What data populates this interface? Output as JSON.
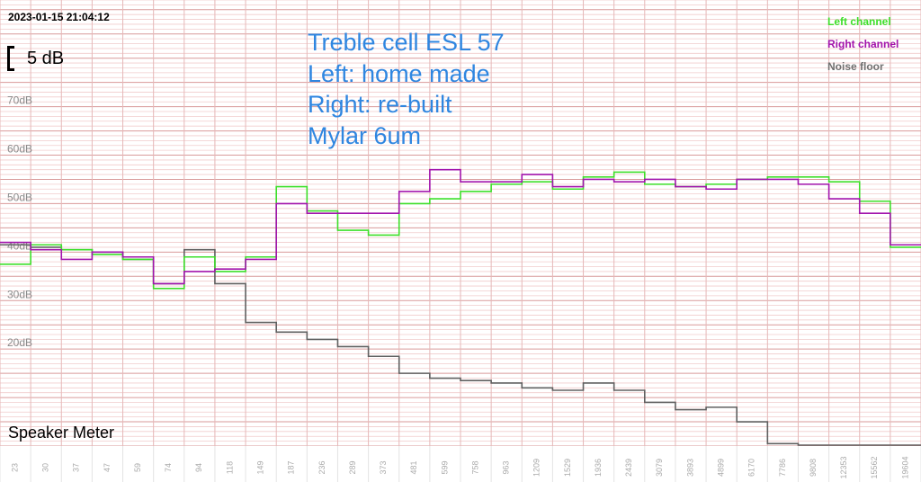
{
  "header": {
    "timestamp": "2023-01-15 21:04:12",
    "scale_label": "5 dB",
    "app_name": "Speaker Meter"
  },
  "annotation": {
    "lines": [
      "Treble cell ESL 57",
      "Left: home made",
      "Right: re-built",
      "Mylar 6um"
    ]
  },
  "chart_data": {
    "type": "line",
    "step": true,
    "categories": [
      "23",
      "30",
      "37",
      "47",
      "59",
      "74",
      "94",
      "118",
      "149",
      "187",
      "236",
      "289",
      "373",
      "481",
      "599",
      "758",
      "963",
      "1209",
      "1529",
      "1936",
      "2439",
      "3079",
      "3893",
      "4899",
      "6170",
      "7786",
      "9808",
      "12353",
      "15562",
      "19604"
    ],
    "y_ticks": [
      {
        "value": 20,
        "label": "20dB"
      },
      {
        "value": 30,
        "label": "30dB"
      },
      {
        "value": 40,
        "label": "40dB"
      },
      {
        "value": 50,
        "label": "50dB"
      },
      {
        "value": 60,
        "label": "60dB"
      },
      {
        "value": 70,
        "label": "70dB"
      }
    ],
    "ylim": [
      0,
      92
    ],
    "grid": true,
    "legend_position": "top-right",
    "series": [
      {
        "name": "Left channel",
        "color": "#3ddf2a",
        "values": [
          37.5,
          41.5,
          40.5,
          39.5,
          38.5,
          32.5,
          39,
          36,
          39,
          53.5,
          48.5,
          44.5,
          43.5,
          50,
          51,
          52.5,
          54,
          54.5,
          53,
          55.5,
          56.5,
          54,
          53.5,
          54,
          55,
          55.5,
          55.5,
          54.5,
          50.5,
          41
        ]
      },
      {
        "name": "Right channel",
        "color": "#a214ac",
        "values": [
          42,
          40.5,
          38.5,
          40,
          39,
          33.5,
          36,
          36.5,
          38.5,
          50,
          48,
          48,
          48,
          52.5,
          57,
          54.5,
          54.5,
          56,
          53.5,
          55,
          54.5,
          55,
          53.5,
          53,
          55,
          55,
          54,
          51,
          48,
          41.5
        ]
      },
      {
        "name": "Noise floor",
        "color": "#606060",
        "values": [
          41.5,
          41,
          40.5,
          40,
          38.5,
          33.5,
          40.5,
          33.5,
          25.5,
          23.5,
          22,
          20.5,
          18.5,
          15,
          14,
          13.5,
          13,
          12,
          11.5,
          13,
          11.5,
          9,
          7.5,
          8,
          5,
          0.5,
          -0.5,
          -0.5,
          -0.5,
          -0.5
        ]
      }
    ]
  }
}
